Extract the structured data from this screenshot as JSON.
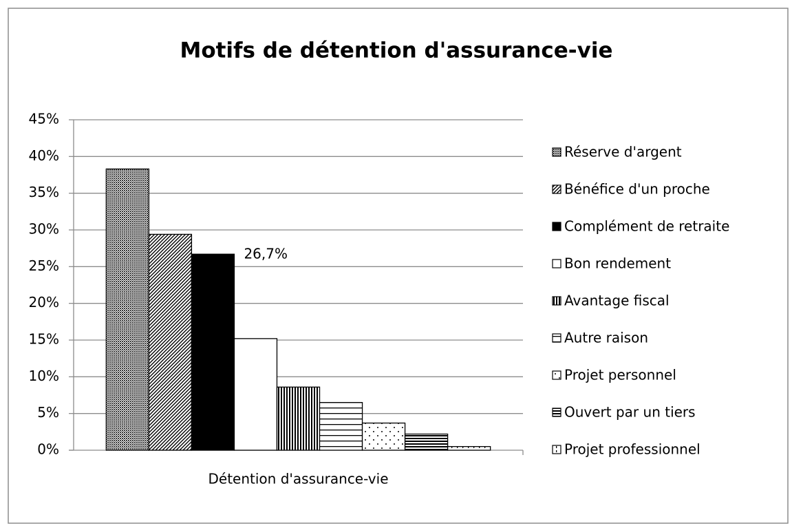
{
  "chart_data": {
    "type": "bar",
    "title": "Motifs de détention d'assurance-vie",
    "categories": [
      "Détention d'assurance-vie"
    ],
    "series": [
      {
        "name": "Réserve d'argent",
        "pattern": "crosshatch",
        "values": [
          38.3
        ]
      },
      {
        "name": "Bénéfice d'un proche",
        "pattern": "diagonal",
        "values": [
          29.4
        ]
      },
      {
        "name": "Complément de retraite",
        "pattern": "solid",
        "values": [
          26.7
        ],
        "value_labels": [
          "26,7%"
        ]
      },
      {
        "name": "Bon rendement",
        "pattern": "none",
        "values": [
          15.2
        ]
      },
      {
        "name": "Avantage fiscal",
        "pattern": "vertical",
        "values": [
          8.6
        ]
      },
      {
        "name": "Autre raison",
        "pattern": "horizontal",
        "values": [
          6.5
        ]
      },
      {
        "name": "Projet personnel",
        "pattern": "dots",
        "values": [
          3.7
        ]
      },
      {
        "name": "Ouvert par un tiers",
        "pattern": "horizontal-dense",
        "values": [
          2.2
        ]
      },
      {
        "name": "Projet professionnel",
        "pattern": "sparse-grid",
        "values": [
          0.5
        ]
      }
    ],
    "ylim": [
      0,
      45
    ],
    "yticks": [
      {
        "value": 0,
        "label": "0%"
      },
      {
        "value": 5,
        "label": "5%"
      },
      {
        "value": 10,
        "label": "10%"
      },
      {
        "value": 15,
        "label": "15%"
      },
      {
        "value": 20,
        "label": "20%"
      },
      {
        "value": 25,
        "label": "25%"
      },
      {
        "value": 30,
        "label": "30%"
      },
      {
        "value": 35,
        "label": "35%"
      },
      {
        "value": 40,
        "label": "40%"
      },
      {
        "value": 45,
        "label": "45%"
      }
    ],
    "grid": true,
    "legend": "right"
  }
}
